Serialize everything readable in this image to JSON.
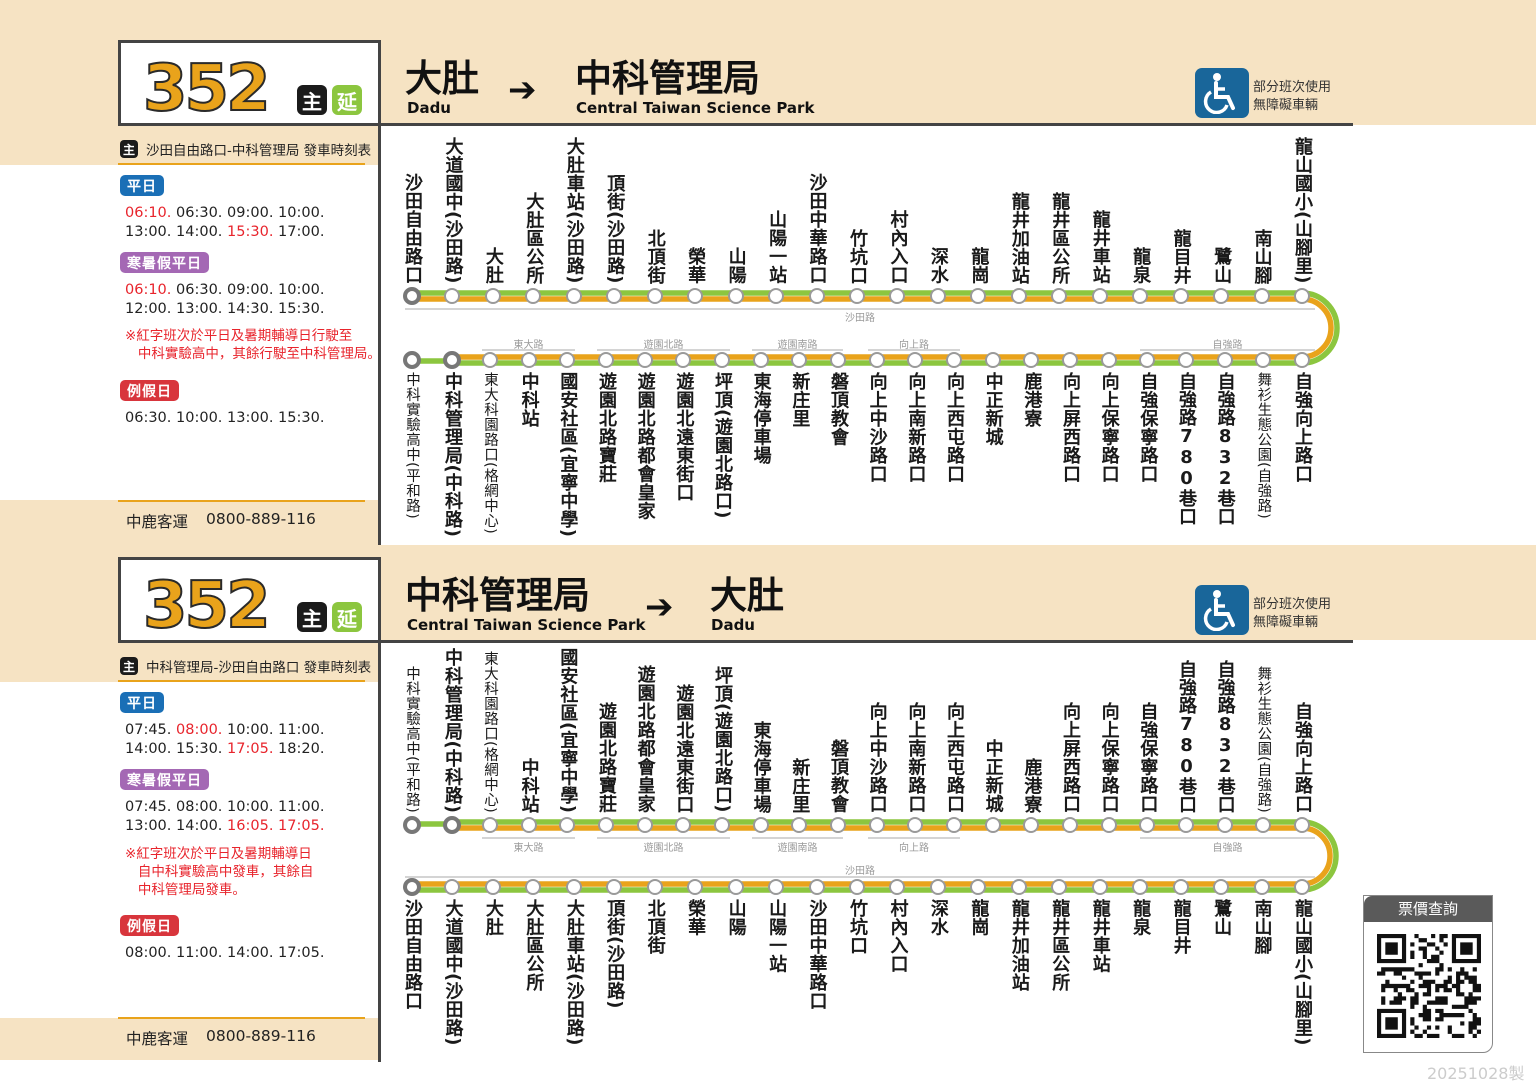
{
  "sections": [
    {
      "route_number": "352",
      "tag_main": "主",
      "tag_ext": "延",
      "from": {
        "zh": "大肚",
        "en": "Dadu"
      },
      "arrow": "➔",
      "to": {
        "zh": "中科管理局",
        "en": "Central Taiwan Science Park"
      },
      "accessibility": {
        "icon": "wheelchair-icon",
        "line1": "部分班次使用",
        "line2": "無障礙車輛"
      },
      "timetable": {
        "title_tag": "主",
        "title": "沙田自由路口-中科管理局  發車時刻表",
        "weekday": {
          "label": "平日",
          "times": [
            {
              "t": "06:10.",
              "red": true
            },
            {
              "t": "06:30."
            },
            {
              "t": "09:00."
            },
            {
              "t": "10:00."
            },
            {
              "t": "13:00."
            },
            {
              "t": "14:00."
            },
            {
              "t": "15:30.",
              "red": true
            },
            {
              "t": "17:00."
            }
          ]
        },
        "vacation": {
          "label": "寒暑假平日",
          "times": [
            {
              "t": "06:10.",
              "red": true
            },
            {
              "t": "06:30."
            },
            {
              "t": "09:00."
            },
            {
              "t": "10:00."
            },
            {
              "t": "12:00."
            },
            {
              "t": "13:00."
            },
            {
              "t": "14:30."
            },
            {
              "t": "15:30."
            }
          ]
        },
        "note": "※紅字班次於平日及暑期輔導日行駛至\n   中科實驗高中，其餘行駛至中科管理局。",
        "holiday": {
          "label": "例假日",
          "times": [
            {
              "t": "06:30."
            },
            {
              "t": "10:00."
            },
            {
              "t": "13:00."
            },
            {
              "t": "15:30."
            }
          ]
        }
      },
      "footer": {
        "operator": "中鹿客運",
        "phone": "0800-889-116"
      },
      "upper_stops": [
        "沙田自由路口",
        "大道國中(沙田路)",
        "大肚",
        "大肚區公所",
        "大肚車站(沙田路)",
        "頂街(沙田路)",
        "北頂街",
        "榮華",
        "山陽",
        "山陽一站",
        "沙田中華路口",
        "竹坑口",
        "村內入口",
        "深水",
        "龍崗",
        "龍井加油站",
        "龍井區公所",
        "龍井車站",
        "龍泉",
        "龍目井",
        "鷺山",
        "南山腳",
        "龍山國小(山腳里)"
      ],
      "lower_stops": [
        "中科實驗高中(平和路)",
        "中科管理局(中科路)",
        "東大科園路口(格網中心)",
        "中科站",
        "國安社區(宜寧中學)",
        "遊園北路寶莊",
        "遊園北路都會皇家",
        "遊園北遠東街口",
        "坪頂(遊園北路口)",
        "東海停車場",
        "新庄里",
        "磐頂教會",
        "向上中沙路口",
        "向上南新路口",
        "向上西屯路口",
        "中正新城",
        "鹿港寮",
        "向上屏西路口",
        "向上保寧路口",
        "自強保寧路口",
        "自強路780巷口",
        "自強路832巷口",
        "舞衫生態公園(自強路)",
        "自強向上路口"
      ],
      "roads": {
        "shatian": "沙田路",
        "others": [
          "東大路",
          "遊園北路",
          "遊園南路",
          "向上路",
          "自強路"
        ]
      },
      "colors": {
        "line_green": "#8cc63f",
        "line_orange": "#e9a31b"
      }
    },
    {
      "route_number": "352",
      "tag_main": "主",
      "tag_ext": "延",
      "from": {
        "zh": "中科管理局",
        "en": "Central Taiwan Science Park"
      },
      "arrow": "➔",
      "to": {
        "zh": "大肚",
        "en": "Dadu"
      },
      "accessibility": {
        "icon": "wheelchair-icon",
        "line1": "部分班次使用",
        "line2": "無障礙車輛"
      },
      "timetable": {
        "title_tag": "主",
        "title": "中科管理局-沙田自由路口  發車時刻表",
        "weekday": {
          "label": "平日",
          "times": [
            {
              "t": "07:45."
            },
            {
              "t": "08:00.",
              "red": true
            },
            {
              "t": "10:00."
            },
            {
              "t": "11:00."
            },
            {
              "t": "14:00."
            },
            {
              "t": "15:30."
            },
            {
              "t": "17:05.",
              "red": true
            },
            {
              "t": "18:20."
            }
          ]
        },
        "vacation": {
          "label": "寒暑假平日",
          "times": [
            {
              "t": "07:45."
            },
            {
              "t": "08:00."
            },
            {
              "t": "10:00."
            },
            {
              "t": "11:00."
            },
            {
              "t": "13:00."
            },
            {
              "t": "14:00."
            },
            {
              "t": "16:05.",
              "red": true
            },
            {
              "t": "17:05.",
              "red": true
            }
          ]
        },
        "note": "※紅字班次於平日及暑期輔導日\n   自中科實驗高中發車，其餘自\n   中科管理局發車。",
        "holiday": {
          "label": "例假日",
          "times": [
            {
              "t": "08:00."
            },
            {
              "t": "11:00."
            },
            {
              "t": "14:00."
            },
            {
              "t": "17:05."
            }
          ]
        }
      },
      "footer": {
        "operator": "中鹿客運",
        "phone": "0800-889-116"
      },
      "upper_stops": [
        "中科實驗高中(平和路)",
        "中科管理局(中科路)",
        "東大科園路口(格網中心)",
        "中科站",
        "國安社區(宜寧中學)",
        "遊園北路寶莊",
        "遊園北路都會皇家",
        "遊園北遠東街口",
        "坪頂(遊園北路口)",
        "東海停車場",
        "新庄里",
        "磐頂教會",
        "向上中沙路口",
        "向上南新路口",
        "向上西屯路口",
        "中正新城",
        "鹿港寮",
        "向上屏西路口",
        "向上保寧路口",
        "自強保寧路口",
        "自強路780巷口",
        "自強路832巷口",
        "舞衫生態公園(自強路)",
        "自強向上路口"
      ],
      "lower_stops": [
        "沙田自由路口",
        "大道國中(沙田路)",
        "大肚",
        "大肚區公所",
        "大肚車站(沙田路)",
        "頂街(沙田路)",
        "北頂街",
        "榮華",
        "山陽",
        "山陽一站",
        "沙田中華路口",
        "竹坑口",
        "村內入口",
        "深水",
        "龍崗",
        "龍井加油站",
        "龍井區公所",
        "龍井車站",
        "龍泉",
        "龍目井",
        "鷺山",
        "南山腳",
        "龍山國小(山腳里)"
      ],
      "roads": {
        "shatian": "沙田路",
        "others": [
          "東大路",
          "遊園北路",
          "遊園南路",
          "向上路",
          "自強路"
        ]
      },
      "colors": {
        "line_green": "#8cc63f",
        "line_orange": "#e9a31b"
      }
    }
  ],
  "fare_query": {
    "title": "票價查詢",
    "qr": "qr-code"
  },
  "print_date": "20251028製"
}
